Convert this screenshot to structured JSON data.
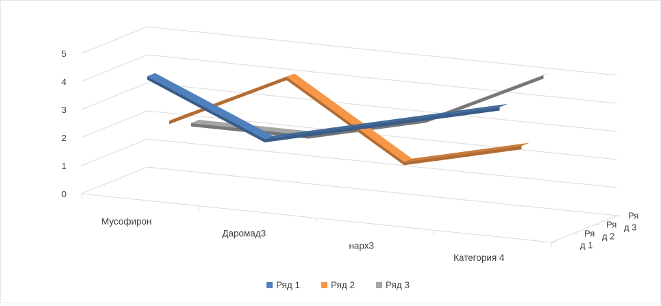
{
  "chart_data": {
    "type": "line",
    "subtype": "3d-line",
    "title": "",
    "categories": [
      "Мусофирон",
      "Даромад3",
      "нарх3",
      "Категория 4"
    ],
    "series": [
      {
        "name": "Ряд 1",
        "values": [
          4.3,
          2.5,
          3.5,
          4.5
        ],
        "color": "#4F81BD"
      },
      {
        "name": "Ряд 2",
        "values": [
          2.4,
          4.4,
          1.8,
          2.8
        ],
        "color": "#F79646"
      },
      {
        "name": "Ряд 3",
        "values": [
          2.0,
          2.0,
          3.0,
          5.0
        ],
        "color": "#A5A5A5"
      }
    ],
    "y_ticks": [
      "0",
      "1",
      "2",
      "3",
      "4",
      "5"
    ],
    "ylim": [
      0,
      5
    ],
    "depth_labels": [
      [
        "Ря",
        "д 1"
      ],
      [
        "Ря",
        "д 2"
      ],
      [
        "Ря",
        "д 3"
      ]
    ],
    "grid": true,
    "legend_position": "bottom"
  }
}
